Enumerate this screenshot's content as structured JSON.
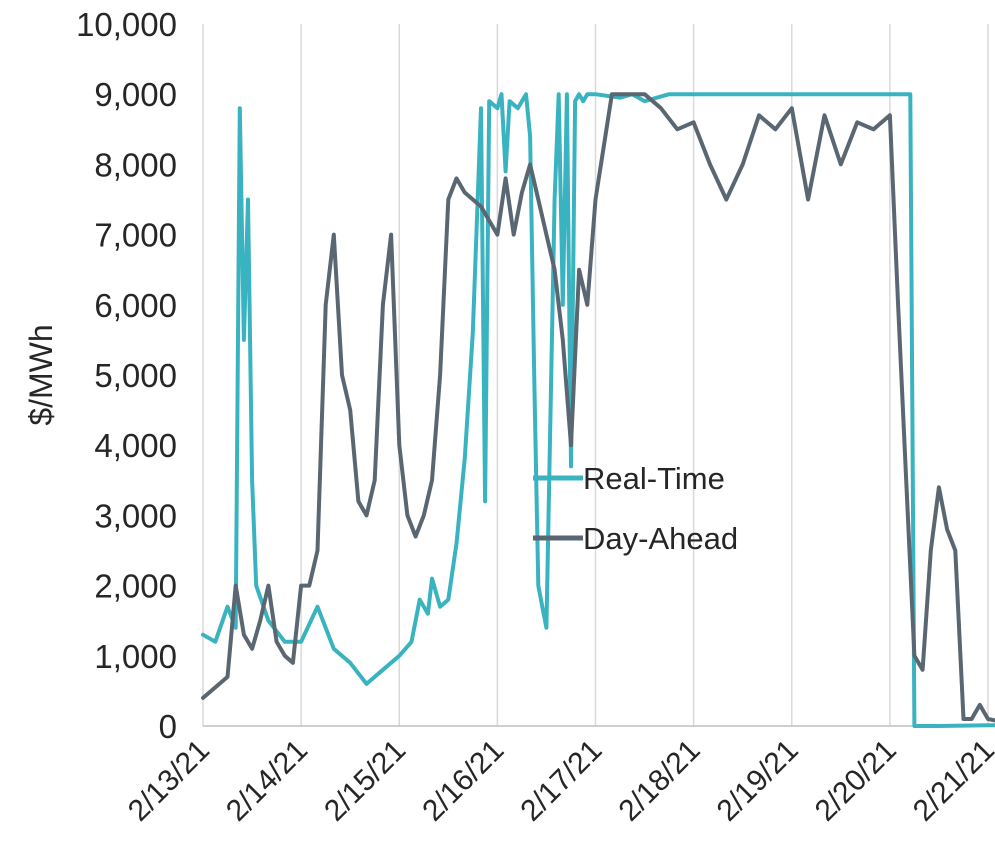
{
  "chart_data": {
    "type": "line",
    "title": "",
    "xlabel": "",
    "ylabel": "$/MWh",
    "ylim": [
      0,
      10000
    ],
    "yticks": [
      "0",
      "1,000",
      "2,000",
      "3,000",
      "4,000",
      "5,000",
      "6,000",
      "7,000",
      "8,000",
      "9,000",
      "10,000"
    ],
    "xlim": [
      "2/13/21",
      "2/21/21"
    ],
    "xticks": [
      "2/13/21",
      "2/14/21",
      "2/15/21",
      "2/16/21",
      "2/17/21",
      "2/18/21",
      "2/19/21",
      "2/20/21",
      "2/21/21"
    ],
    "grid": "vertical",
    "legend": "center-right",
    "series": [
      {
        "name": "Real-Time",
        "color": "#3ab3c0",
        "x": [
          "2/13/21 00:00",
          "2/13/21 03:00",
          "2/13/21 06:00",
          "2/13/21 08:00",
          "2/13/21 09:00",
          "2/13/21 10:00",
          "2/13/21 11:00",
          "2/13/21 12:00",
          "2/13/21 13:00",
          "2/13/21 16:00",
          "2/13/21 20:00",
          "2/14/21 00:00",
          "2/14/21 04:00",
          "2/14/21 08:00",
          "2/14/21 12:00",
          "2/14/21 16:00",
          "2/14/21 20:00",
          "2/15/21 00:00",
          "2/15/21 03:00",
          "2/15/21 05:00",
          "2/15/21 07:00",
          "2/15/21 08:00",
          "2/15/21 10:00",
          "2/15/21 12:00",
          "2/15/21 14:00",
          "2/15/21 16:00",
          "2/15/21 18:00",
          "2/15/21 20:00",
          "2/15/21 21:00",
          "2/15/21 22:00",
          "2/16/21 00:00",
          "2/16/21 01:00",
          "2/16/21 02:00",
          "2/16/21 03:00",
          "2/16/21 05:00",
          "2/16/21 07:00",
          "2/16/21 08:00",
          "2/16/21 09:00",
          "2/16/21 10:00",
          "2/16/21 11:00",
          "2/16/21 12:00",
          "2/16/21 14:00",
          "2/16/21 15:00",
          "2/16/21 16:00",
          "2/16/21 17:00",
          "2/16/21 18:00",
          "2/16/21 19:00",
          "2/16/21 20:00",
          "2/16/21 21:00",
          "2/16/21 22:00",
          "2/17/21 00:00",
          "2/17/21 06:00",
          "2/17/21 09:00",
          "2/17/21 12:00",
          "2/17/21 18:00",
          "2/18/21 00:00",
          "2/18/21 12:00",
          "2/19/21 00:00",
          "2/19/21 12:00",
          "2/20/21 00:00",
          "2/20/21 05:00",
          "2/20/21 06:00",
          "2/20/21 12:00",
          "2/21/21 00:00",
          "2/21/21 12:00",
          "2/21/21 23:00"
        ],
        "values": [
          1300,
          1200,
          1700,
          1400,
          8800,
          5500,
          7500,
          3500,
          2000,
          1500,
          1200,
          1200,
          1700,
          1100,
          900,
          600,
          800,
          1000,
          1200,
          1800,
          1600,
          2100,
          1700,
          1800,
          2600,
          3800,
          5600,
          8800,
          3200,
          8900,
          8800,
          9000,
          7900,
          8900,
          8800,
          9000,
          8400,
          5000,
          2000,
          1700,
          1400,
          7500,
          9000,
          6000,
          9000,
          3700,
          8900,
          9000,
          8900,
          9000,
          9000,
          8950,
          9000,
          8900,
          9000,
          9000,
          9000,
          9000,
          9000,
          9000,
          9000,
          0,
          0,
          10,
          20,
          40
        ]
      },
      {
        "name": "Day-Ahead",
        "color": "#5a6772",
        "x": [
          "2/13/21 00:00",
          "2/13/21 02:00",
          "2/13/21 06:00",
          "2/13/21 08:00",
          "2/13/21 10:00",
          "2/13/21 12:00",
          "2/13/21 14:00",
          "2/13/21 16:00",
          "2/13/21 18:00",
          "2/13/21 20:00",
          "2/13/21 22:00",
          "2/14/21 00:00",
          "2/14/21 02:00",
          "2/14/21 04:00",
          "2/14/21 06:00",
          "2/14/21 08:00",
          "2/14/21 10:00",
          "2/14/21 12:00",
          "2/14/21 14:00",
          "2/14/21 16:00",
          "2/14/21 18:00",
          "2/14/21 20:00",
          "2/14/21 22:00",
          "2/15/21 00:00",
          "2/15/21 02:00",
          "2/15/21 04:00",
          "2/15/21 06:00",
          "2/15/21 08:00",
          "2/15/21 10:00",
          "2/15/21 12:00",
          "2/15/21 14:00",
          "2/15/21 16:00",
          "2/15/21 18:00",
          "2/15/21 20:00",
          "2/15/21 22:00",
          "2/16/21 00:00",
          "2/16/21 02:00",
          "2/16/21 04:00",
          "2/16/21 06:00",
          "2/16/21 08:00",
          "2/16/21 10:00",
          "2/16/21 12:00",
          "2/16/21 14:00",
          "2/16/21 16:00",
          "2/16/21 18:00",
          "2/16/21 20:00",
          "2/16/21 22:00",
          "2/17/21 00:00",
          "2/17/21 04:00",
          "2/17/21 08:00",
          "2/17/21 12:00",
          "2/17/21 16:00",
          "2/17/21 20:00",
          "2/18/21 00:00",
          "2/18/21 04:00",
          "2/18/21 08:00",
          "2/18/21 12:00",
          "2/18/21 16:00",
          "2/18/21 20:00",
          "2/19/21 00:00",
          "2/19/21 04:00",
          "2/19/21 08:00",
          "2/19/21 12:00",
          "2/19/21 16:00",
          "2/19/21 20:00",
          "2/20/21 00:00",
          "2/20/21 02:00",
          "2/20/21 04:00",
          "2/20/21 06:00",
          "2/20/21 08:00",
          "2/20/21 10:00",
          "2/20/21 12:00",
          "2/20/21 14:00",
          "2/20/21 16:00",
          "2/20/21 18:00",
          "2/20/21 20:00",
          "2/20/21 22:00",
          "2/21/21 00:00",
          "2/21/21 06:00",
          "2/21/21 12:00",
          "2/21/21 23:00"
        ],
        "values": [
          400,
          500,
          700,
          2000,
          1300,
          1100,
          1500,
          2000,
          1200,
          1000,
          900,
          2000,
          2000,
          2500,
          6000,
          7000,
          5000,
          4500,
          3200,
          3000,
          3500,
          6000,
          7000,
          4000,
          3000,
          2700,
          3000,
          3500,
          5000,
          7500,
          7800,
          7600,
          7500,
          7400,
          7200,
          7000,
          7800,
          7000,
          7600,
          8000,
          7500,
          7000,
          6500,
          5500,
          4000,
          6500,
          6000,
          7500,
          9000,
          9000,
          9000,
          8800,
          8500,
          8600,
          8000,
          7500,
          8000,
          8700,
          8500,
          8800,
          7500,
          8700,
          8000,
          8600,
          8500,
          8700,
          6000,
          3500,
          1000,
          800,
          2500,
          3400,
          2800,
          2500,
          100,
          100,
          300,
          100,
          30,
          20,
          50
        ]
      }
    ]
  }
}
